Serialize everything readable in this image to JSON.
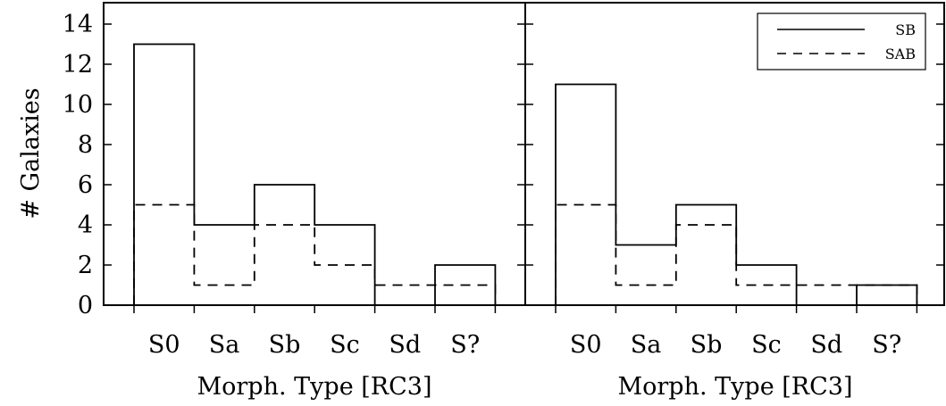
{
  "chart_data": [
    {
      "type": "histogram",
      "panel": "left",
      "categories": [
        "S0",
        "Sa",
        "Sb",
        "Sc",
        "Sd",
        "S?"
      ],
      "series": [
        {
          "name": "SB",
          "line_style": "solid",
          "values": [
            13,
            4,
            6,
            4,
            0,
            2
          ]
        },
        {
          "name": "SAB",
          "line_style": "dashed",
          "values": [
            5,
            1,
            4,
            2,
            1,
            1
          ]
        }
      ],
      "xlabel": "Morph. Type [RC3]",
      "ylabel": "# Galaxies",
      "ylim": [
        0,
        15
      ],
      "yticks": [
        "0",
        "2",
        "4",
        "6",
        "8",
        "10",
        "12",
        "14"
      ],
      "legend": "top-right"
    },
    {
      "type": "histogram",
      "panel": "right",
      "categories": [
        "S0",
        "Sa",
        "Sb",
        "Sc",
        "Sd",
        "S?"
      ],
      "series": [
        {
          "name": "SB",
          "line_style": "solid",
          "values": [
            11,
            3,
            5,
            2,
            0,
            1
          ]
        },
        {
          "name": "SAB",
          "line_style": "dashed",
          "values": [
            5,
            1,
            4,
            1,
            1,
            1
          ]
        }
      ],
      "xlabel": "Morph. Type [RC3]",
      "ylim": [
        0,
        15
      ]
    }
  ],
  "legend": {
    "entries": [
      {
        "label": "SB",
        "line_style": "solid"
      },
      {
        "label": "SAB",
        "line_style": "dashed"
      }
    ]
  }
}
